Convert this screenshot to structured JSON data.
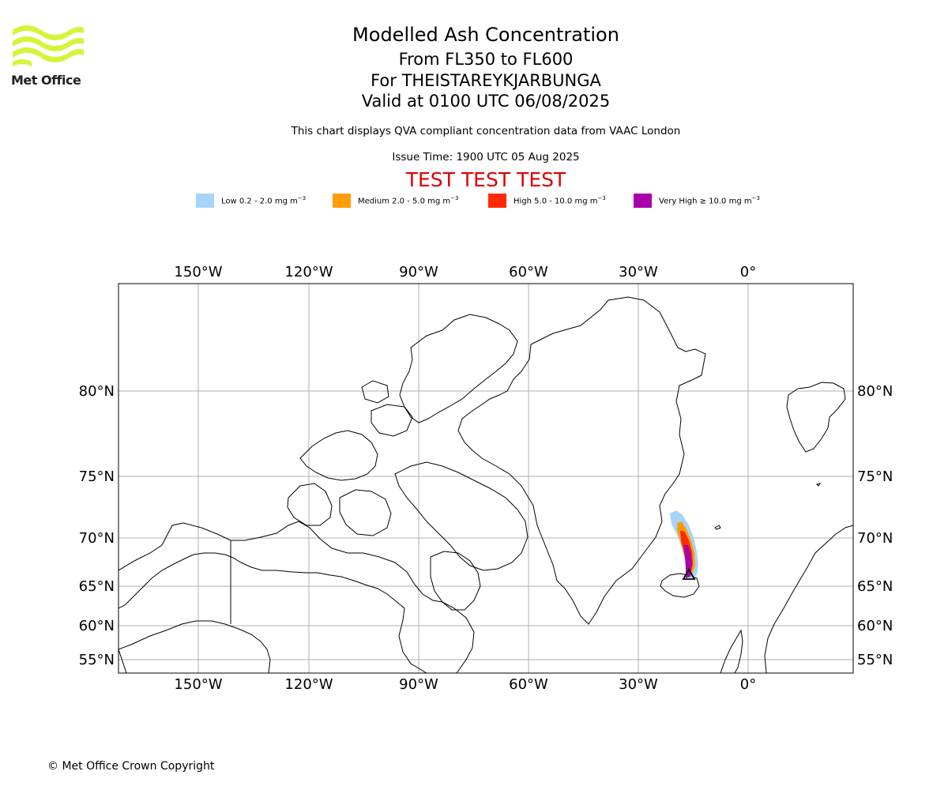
{
  "logo": {
    "text": "Met Office",
    "brand_color": "#d4f53a"
  },
  "title": {
    "main": "Modelled Ash Concentration",
    "flight_levels": "From FL350 to FL600",
    "volcano": "For THEISTAREYKJARBUNGA",
    "valid": "Valid at 0100 UTC 06/08/2025"
  },
  "subtitle": "This chart displays QVA compliant concentration data from VAAC London",
  "issue_time": "Issue Time: 1900 UTC 05 Aug 2025",
  "test_banner": "TEST TEST TEST",
  "legend": [
    {
      "label": "Low 0.2 - 2.0 mg m",
      "color": "#a6d4fb"
    },
    {
      "label": "Medium 2.0 - 5.0 mg m",
      "color": "#ff9d0a"
    },
    {
      "label": "High 5.0 - 10.0 mg m",
      "color": "#ff2a05"
    },
    {
      "label": "Very High ≥ 10.0 mg m",
      "color": "#aa00aa"
    }
  ],
  "legend_unit_exponent": "−3",
  "map": {
    "longitude_labels": [
      "150°W",
      "120°W",
      "90°W",
      "60°W",
      "30°W",
      "0°"
    ],
    "latitude_labels": [
      "80°N",
      "75°N",
      "70°N",
      "65°N",
      "60°N",
      "55°N"
    ],
    "volcano_marker": "triangle",
    "grid_color": "#b0b0b0"
  },
  "copyright": "© Met Office Crown Copyright"
}
